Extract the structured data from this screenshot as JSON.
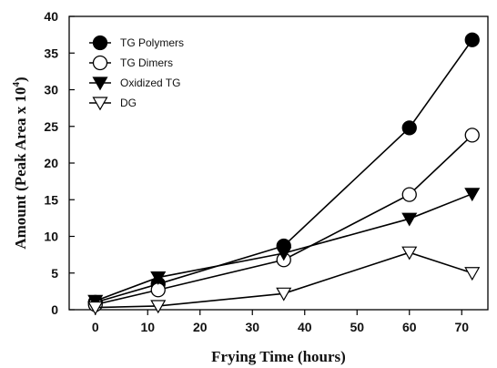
{
  "chart_data": {
    "type": "line",
    "title": "",
    "xlabel": "Frying Time (hours)",
    "ylabel_main": "Amount (Peak Area x 10",
    "ylabel_sup": "4",
    "ylabel_close": ")",
    "xlim": [
      -5,
      75
    ],
    "ylim": [
      0,
      40
    ],
    "x_ticks": [
      0,
      10,
      20,
      30,
      40,
      50,
      60,
      70
    ],
    "y_ticks": [
      0,
      5,
      10,
      15,
      20,
      25,
      30,
      35,
      40
    ],
    "x_tick_labels": [
      "0",
      "10",
      "20",
      "30",
      "40",
      "50",
      "60",
      "70"
    ],
    "y_tick_labels": [
      "0",
      "5",
      "10",
      "15",
      "20",
      "25",
      "30",
      "35",
      "40"
    ],
    "x": [
      0,
      12,
      36,
      60,
      72
    ],
    "legend_position": "top-left",
    "grid": false,
    "series": [
      {
        "name": "TG Polymers",
        "marker": "circle-filled",
        "values": [
          1.0,
          3.5,
          8.7,
          24.8,
          36.8
        ]
      },
      {
        "name": "TG Dimers",
        "marker": "circle-open",
        "values": [
          0.7,
          2.7,
          6.8,
          15.7,
          23.8
        ]
      },
      {
        "name": "Oxidized TG",
        "marker": "triangle-down-filled",
        "values": [
          1.2,
          4.4,
          7.7,
          12.4,
          15.8
        ]
      },
      {
        "name": "DG",
        "marker": "triangle-down-open",
        "values": [
          0.3,
          0.5,
          2.2,
          7.8,
          5.0
        ]
      }
    ]
  }
}
